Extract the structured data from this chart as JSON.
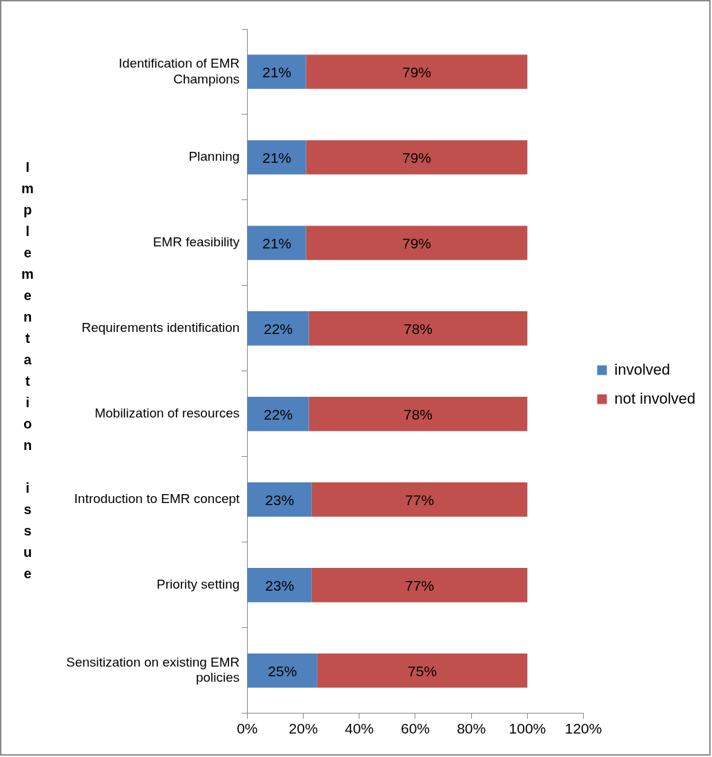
{
  "chart_data": {
    "type": "bar",
    "orientation": "horizontal",
    "stacked": true,
    "ylabel": "Implementation issue",
    "categories": [
      "Identification of EMR Champions",
      "Planning",
      "EMR feasibility",
      "Requirements identification",
      "Mobilization of resources",
      "Introduction to EMR concept",
      "Priority setting",
      "Sensitization on existing EMR policies"
    ],
    "series": [
      {
        "name": "involved",
        "color": "#4f81bd",
        "values": [
          21,
          21,
          21,
          22,
          22,
          23,
          23,
          25
        ],
        "value_labels": [
          "21%",
          "21%",
          "21%",
          "22%",
          "22%",
          "23%",
          "23%",
          "25%"
        ]
      },
      {
        "name": "not involved",
        "color": "#c0504d",
        "values": [
          79,
          79,
          79,
          78,
          78,
          77,
          77,
          75
        ],
        "value_labels": [
          "79%",
          "79%",
          "79%",
          "78%",
          "78%",
          "77%",
          "77%",
          "75%"
        ]
      }
    ],
    "xlim": [
      0,
      120
    ],
    "xticks": [
      {
        "value": 0,
        "label": "0%"
      },
      {
        "value": 20,
        "label": "20%"
      },
      {
        "value": 40,
        "label": "40%"
      },
      {
        "value": 60,
        "label": "60%"
      },
      {
        "value": 80,
        "label": "80%"
      },
      {
        "value": 100,
        "label": "100%"
      },
      {
        "value": 120,
        "label": "120%"
      }
    ],
    "grid": false,
    "legend": "right"
  }
}
